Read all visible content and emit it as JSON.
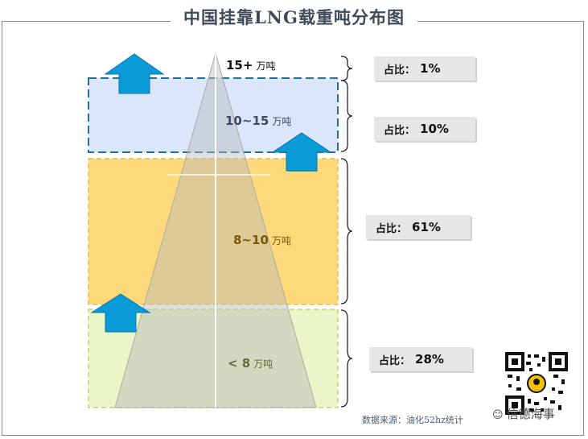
{
  "title": "中国挂靠LNG载重吨分布图",
  "tiers": [
    {
      "range": "15+",
      "unit": "万吨",
      "share_label": "占比：",
      "share": "1%"
    },
    {
      "range": "10~15",
      "unit": "万吨",
      "share_label": "占比：",
      "share": "10%"
    },
    {
      "range": "8~10",
      "unit": "万吨",
      "share_label": "占比：",
      "share": "61%"
    },
    {
      "range": "< 8",
      "unit": "万吨",
      "share_label": "占比：",
      "share": "28%"
    }
  ],
  "source": "数据来源：油化52hz统计",
  "watermark": "信德海事",
  "colors": {
    "blue_band": "#dbe6fb",
    "blue_border": "#1f6fa0",
    "yellow_band": "#fdd97a",
    "green_band": "#eaf5c8",
    "arrow": "#0b9ad8",
    "triangle": "#b8b8b8"
  }
}
